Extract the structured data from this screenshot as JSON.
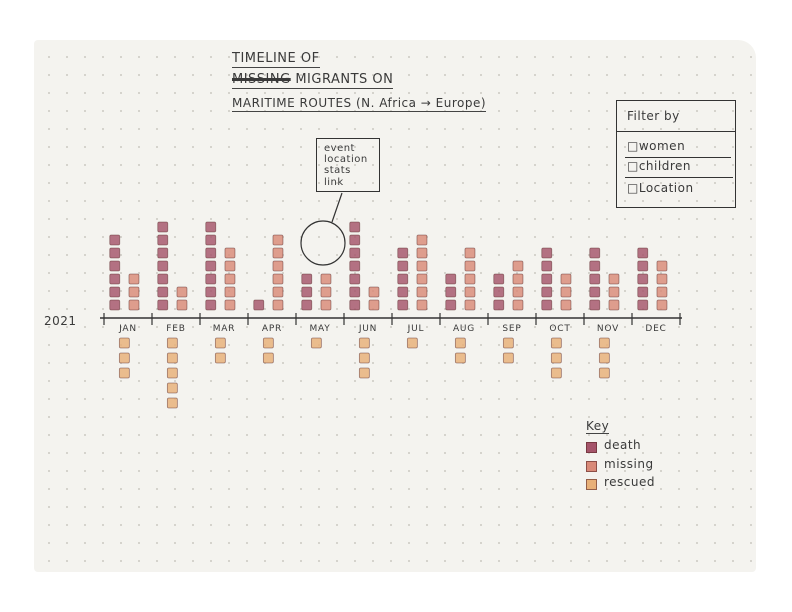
{
  "title": {
    "line1": "TIMELINE OF",
    "line2_struck": "MISSING",
    "line2": "MIGRANTS ON",
    "line3": "MARITIME ROUTES (N. Africa → Europe)"
  },
  "filter": {
    "title": "Filter by",
    "options": [
      "□women",
      "□children",
      "□Location"
    ]
  },
  "event_box": {
    "lines": [
      "event",
      "location",
      "stats",
      "link"
    ]
  },
  "timeline": {
    "year": "2021",
    "months": [
      "JAN",
      "FEB",
      "MAR",
      "APR",
      "MAY",
      "JUN",
      "JUL",
      "AUG",
      "SEP",
      "OCT",
      "NOV",
      "DEC"
    ]
  },
  "key": {
    "title": "Key",
    "items": [
      {
        "label": "death",
        "color": "#a5546a"
      },
      {
        "label": "missing",
        "color": "#d98a78"
      },
      {
        "label": "rescued",
        "color": "#e8b078"
      }
    ]
  },
  "chart_data": {
    "type": "bar",
    "categories": [
      "JAN",
      "FEB",
      "MAR",
      "APR",
      "MAY",
      "JUN",
      "JUL",
      "AUG",
      "SEP",
      "OCT",
      "NOV",
      "DEC"
    ],
    "series": [
      {
        "name": "death",
        "values": [
          6,
          7,
          7,
          1,
          3,
          7,
          5,
          3,
          3,
          5,
          5,
          5
        ]
      },
      {
        "name": "missing",
        "values": [
          3,
          2,
          5,
          6,
          3,
          2,
          6,
          5,
          4,
          3,
          3,
          4
        ]
      },
      {
        "name": "rescued",
        "values": [
          3,
          5,
          2,
          2,
          1,
          3,
          1,
          2,
          2,
          3,
          3,
          0
        ]
      }
    ]
  }
}
